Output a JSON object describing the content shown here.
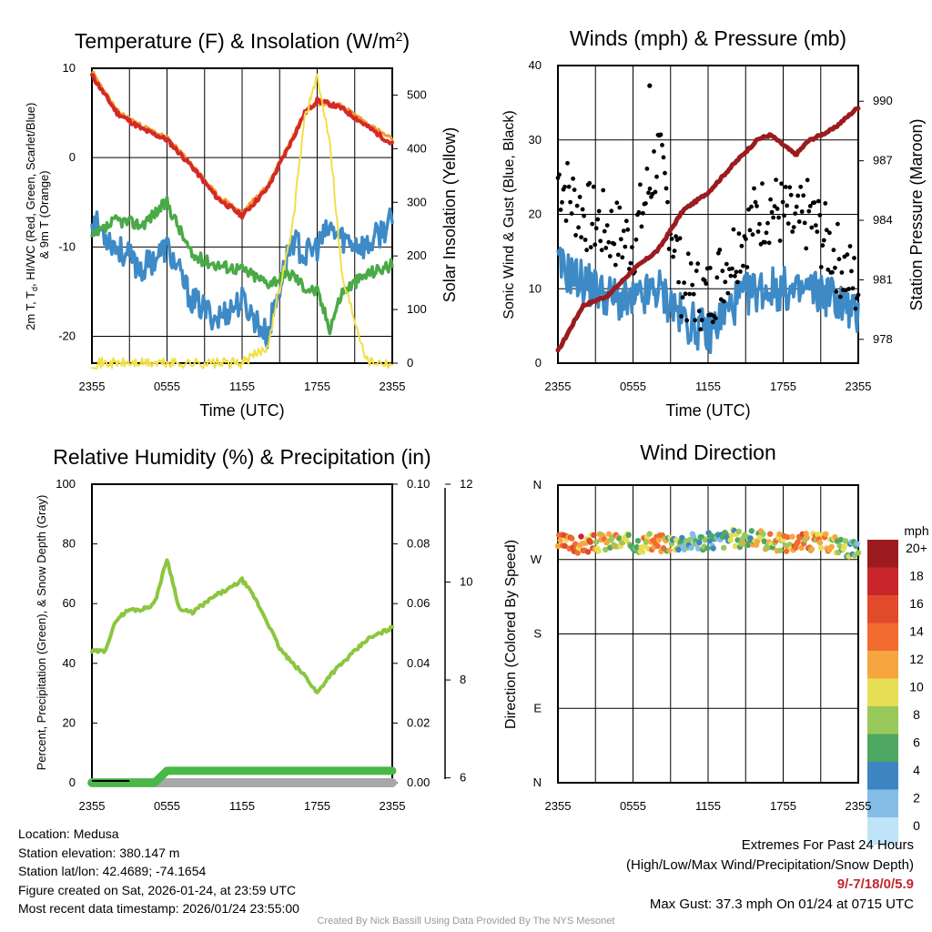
{
  "chart_data": [
    {
      "type": "line",
      "title": "Temperature (F) & Insolation (W/m²)",
      "xlabel": "Time (UTC)",
      "ylabel": "2m T, Td, HI/WC (Red, Green, Scarlet/Blue) & 9m T (Orange)",
      "y2label": "Solar Insolation (Yellow)",
      "xticks": [
        "2355",
        "0555",
        "1155",
        "1755",
        "2355"
      ],
      "yticks": [
        "10",
        "0",
        "-10",
        "-20"
      ],
      "y2ticks": [
        "500",
        "400",
        "300",
        "200",
        "100",
        "0"
      ],
      "ylim": [
        -23,
        10
      ],
      "y2lim": [
        0,
        550
      ],
      "x": [
        0,
        2,
        4,
        6,
        8,
        10,
        12,
        14,
        16,
        17,
        18,
        19,
        20,
        22,
        24
      ],
      "series": [
        {
          "name": "2m T",
          "color": "#d42a27",
          "values": [
            9.2,
            5,
            3.2,
            2,
            -1,
            -4.5,
            -6.5,
            -3.5,
            2,
            5,
            6.4,
            6,
            5.5,
            3.5,
            1.5
          ]
        },
        {
          "name": "9m T",
          "color": "#f39a2c",
          "values": [
            9.6,
            5.2,
            3.5,
            2.2,
            -0.8,
            -4.2,
            -6.2,
            -3.2,
            2.2,
            5.2,
            6.1,
            6,
            5.8,
            3.8,
            2
          ]
        },
        {
          "name": "Td",
          "color": "#4aaa47",
          "values": [
            -9,
            -7,
            -7.5,
            -5,
            -11,
            -12,
            -12.5,
            -14,
            -13,
            -14.5,
            -15,
            -19,
            -15,
            -13,
            -12
          ]
        },
        {
          "name": "Wind Chill",
          "color": "#3d8ac6",
          "values": [
            -7,
            -10,
            -12.5,
            -10,
            -16,
            -18,
            -16,
            -20,
            -9,
            -11,
            -10,
            -8,
            -9,
            -10,
            -7
          ]
        },
        {
          "name": "Solar Insolation",
          "color": "#f2df45",
          "axis": "y2",
          "values": [
            0,
            0,
            0,
            0,
            0,
            0,
            0,
            30,
            250,
            460,
            530,
            420,
            160,
            5,
            0
          ]
        }
      ]
    },
    {
      "type": "line",
      "title": "Winds (mph) & Pressure (mb)",
      "xlabel": "Time (UTC)",
      "ylabel": "Sonic Wind & Gust (Blue, Black)",
      "y2label": "Station Pressure (Maroon)",
      "xticks": [
        "2355",
        "0555",
        "1155",
        "1755",
        "2355"
      ],
      "yticks": [
        "40",
        "30",
        "20",
        "10",
        "0"
      ],
      "y2ticks": [
        "990",
        "987",
        "984",
        "981",
        "978"
      ],
      "ylim": [
        0,
        40
      ],
      "y2lim": [
        976.8,
        991.8
      ],
      "x": [
        0,
        2,
        4,
        6,
        8,
        10,
        12,
        14,
        16,
        17,
        18,
        19,
        20,
        22,
        24
      ],
      "series": [
        {
          "name": "Sonic Wind",
          "color": "#3d8ac6",
          "values": [
            13,
            11,
            9,
            8,
            10,
            6,
            4,
            8,
            10,
            10,
            10,
            9,
            10,
            9,
            6
          ]
        },
        {
          "name": "Gust",
          "color": "#000000",
          "style": "dots",
          "values": [
            25,
            20,
            18,
            16,
            28,
            10,
            9,
            15,
            20,
            21,
            20,
            18,
            20,
            15,
            10
          ]
        },
        {
          "name": "Station Pressure",
          "color": "#9b1b1f",
          "axis": "y2",
          "values": [
            977.4,
            979.7,
            980.2,
            981.5,
            982.5,
            984.5,
            985.4,
            986.8,
            988.1,
            988.3,
            987.8,
            987.3,
            988.0,
            988.6,
            989.7
          ]
        }
      ],
      "max_gust": {
        "value": 37.3,
        "time": "0715"
      }
    },
    {
      "type": "line",
      "title": "Relative Humidity (%) & Precipitation (in)",
      "ylabel": "Percent, Precipitation (Green), & Snow Depth (Gray)",
      "xticks": [
        "2355",
        "0555",
        "1155",
        "1755",
        "2355"
      ],
      "yticks": [
        "100",
        "80",
        "60",
        "40",
        "20",
        "0"
      ],
      "y2ticks": [
        "0.10",
        "0.08",
        "0.06",
        "0.04",
        "0.02",
        "0.00"
      ],
      "y3ticks": [
        "12",
        "10",
        "8",
        "6"
      ],
      "ylim": [
        0,
        100
      ],
      "y2lim": [
        0,
        0.1
      ],
      "y3lim": [
        5.9,
        12
      ],
      "x": [
        0,
        1,
        2,
        3,
        4,
        5,
        6,
        7,
        8,
        9,
        10,
        11,
        12,
        13,
        14,
        15,
        16,
        17,
        18,
        19,
        20,
        21,
        22,
        23,
        24
      ],
      "series": [
        {
          "name": "Relative Humidity",
          "color": "#8cc63f",
          "values": [
            44,
            44,
            55,
            58,
            58,
            60,
            75,
            58,
            57,
            60,
            63,
            65,
            68,
            62,
            54,
            45,
            40,
            36,
            30,
            36,
            40,
            44,
            48,
            50,
            52
          ]
        },
        {
          "name": "Precipitation",
          "color": "#48b847",
          "axis": "y2",
          "values": [
            0,
            0,
            0,
            0,
            0,
            0,
            0.004,
            0.004,
            0.004,
            0.004,
            0.004,
            0.004,
            0.004,
            0.004,
            0.004,
            0.004,
            0.004,
            0.004,
            0.004,
            0.004,
            0.004,
            0.004,
            0.004,
            0.004,
            0.004
          ]
        },
        {
          "name": "Snow Depth",
          "color": "#a8a8a8",
          "axis": "y3",
          "values": [
            5.9,
            5.9,
            5.9,
            5.9,
            5.9,
            5.9,
            5.9,
            5.9,
            5.9,
            5.9,
            5.9,
            5.9,
            5.9,
            5.9,
            5.9,
            5.9,
            5.9,
            5.9,
            5.9,
            5.9,
            5.9,
            5.9,
            5.9,
            5.9,
            5.9
          ]
        }
      ]
    },
    {
      "type": "scatter",
      "title": "Wind Direction",
      "ylabel": "Direction (Colored By Speed)",
      "xticks": [
        "2355",
        "0555",
        "1155",
        "1755",
        "2355"
      ],
      "yticks": [
        "N",
        "W",
        "S",
        "E",
        "N"
      ],
      "ylim": [
        0,
        360
      ],
      "legend_title": "mph",
      "legend_labels": [
        "20+",
        "18",
        "16",
        "14",
        "12",
        "10",
        "8",
        "6",
        "4",
        "2",
        "0"
      ],
      "legend_colors": [
        "#9b1b1f",
        "#c9262b",
        "#e14a2b",
        "#f26b2f",
        "#f7a541",
        "#e8de55",
        "#98c95a",
        "#4ea863",
        "#3d86c1",
        "#84bde6",
        "#bfe3f7"
      ],
      "x": [
        0,
        2,
        4,
        6,
        8,
        10,
        12,
        14,
        16,
        18,
        20,
        22,
        24
      ],
      "values": [
        290,
        288,
        292,
        290,
        290,
        292,
        292,
        296,
        294,
        290,
        292,
        290,
        280
      ],
      "speeds": [
        15,
        14,
        10,
        9,
        12,
        5,
        5,
        7,
        9,
        11,
        12,
        9,
        5
      ]
    }
  ],
  "info": {
    "location": "Location: Medusa",
    "elevation": "Station elevation: 380.147 m",
    "latlon": "Station lat/lon: 42.4689; -74.1654",
    "created": "Figure created on Sat, 2026-01-24, at 23:59 UTC",
    "recent": "Most recent data timestamp: 2026/01/24 23:55:00"
  },
  "extremes": {
    "title": "Extremes For Past 24 Hours",
    "subtitle": "(High/Low/Max Wind/Precipitation/Snow Depth)",
    "values": "9/-7/18/0/5.9",
    "max_gust": "Max Gust: 37.3 mph On 01/24 at 0715 UTC"
  },
  "credit": "Created By Nick Bassill Using Data Provided By The NYS Mesonet"
}
